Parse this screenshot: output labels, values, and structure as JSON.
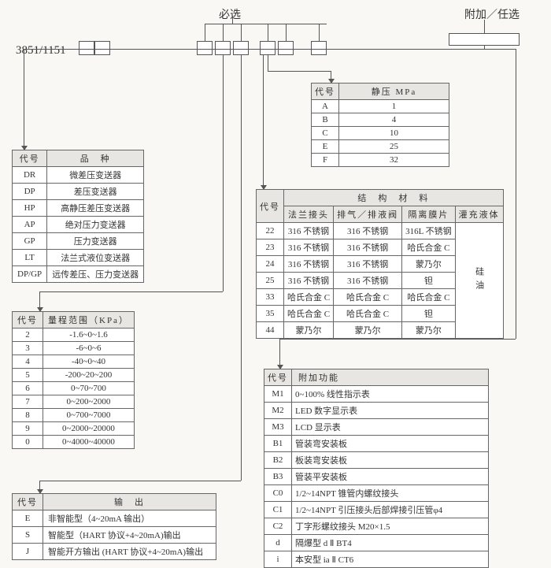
{
  "labels": {
    "required": "必选",
    "optional": "附加／任选",
    "model": "3851/1151"
  },
  "table_variety": {
    "headers": [
      "代号",
      "品　种"
    ],
    "rows": [
      [
        "DR",
        "微差压变送器"
      ],
      [
        "DP",
        "差压变送器"
      ],
      [
        "HP",
        "高静压差压变送器"
      ],
      [
        "AP",
        "绝对压力变送器"
      ],
      [
        "GP",
        "压力变送器"
      ],
      [
        "LT",
        "法兰式液位变送器"
      ],
      [
        "DP/GP",
        "远传差压、压力变送器"
      ]
    ]
  },
  "table_range": {
    "headers": [
      "代号",
      "量程范围（KPa）"
    ],
    "rows": [
      [
        "2",
        "-1.6~0~1.6"
      ],
      [
        "3",
        "-6~0~6"
      ],
      [
        "4",
        "-40~0~40"
      ],
      [
        "5",
        "-200~20~200"
      ],
      [
        "6",
        "0~70~700"
      ],
      [
        "7",
        "0~200~2000"
      ],
      [
        "8",
        "0~700~7000"
      ],
      [
        "9",
        "0~2000~20000"
      ],
      [
        "0",
        "0~4000~40000"
      ]
    ]
  },
  "table_output": {
    "headers": [
      "代号",
      "输　出"
    ],
    "rows": [
      [
        "E",
        "非智能型（4~20mA 输出）"
      ],
      [
        "S",
        "智能型（HART 协议+4~20mA)输出"
      ],
      [
        "J",
        "智能开方输出 (HART 协议+4~20mA)输出"
      ]
    ]
  },
  "table_static": {
    "headers": [
      "代号",
      "静压 MPa"
    ],
    "rows": [
      [
        "A",
        "1"
      ],
      [
        "B",
        "4"
      ],
      [
        "C",
        "10"
      ],
      [
        "E",
        "25"
      ],
      [
        "F",
        "32"
      ]
    ]
  },
  "table_material": {
    "title": "结　构　材　料",
    "headers": [
      "代号",
      "法兰接头",
      "排气／排液阀",
      "隔离膜片",
      "灌充液体"
    ],
    "fill": "硅油",
    "rows": [
      [
        "22",
        "316 不锈钢",
        "316 不锈钢",
        "316L 不锈钢"
      ],
      [
        "23",
        "316 不锈钢",
        "316 不锈钢",
        "哈氏合金 C"
      ],
      [
        "24",
        "316 不锈钢",
        "316 不锈钢",
        "蒙乃尔"
      ],
      [
        "25",
        "316 不锈钢",
        "316 不锈钢",
        "钽"
      ],
      [
        "33",
        "哈氏合金 C",
        "哈氏合金 C",
        "哈氏合金 C"
      ],
      [
        "35",
        "哈氏合金 C",
        "哈氏合金 C",
        "钽"
      ],
      [
        "44",
        "蒙乃尔",
        "蒙乃尔",
        "蒙乃尔"
      ]
    ]
  },
  "table_addon": {
    "headers": [
      "代号",
      "附加功能"
    ],
    "rows": [
      [
        "M1",
        "0~100% 线性指示表"
      ],
      [
        "M2",
        "LED 数字显示表"
      ],
      [
        "M3",
        "LCD 显示表"
      ],
      [
        "B1",
        "管装弯安装板"
      ],
      [
        "B2",
        "板装弯安装板"
      ],
      [
        "B3",
        "管装平安装板"
      ],
      [
        "C0",
        "1/2~14NPT 锥管内螺纹接头"
      ],
      [
        "C1",
        "1/2~14NPT 引压接头后部焊接引压管φ4"
      ],
      [
        "C2",
        "丁字形螺纹接头 M20×1.5"
      ],
      [
        "d",
        "隔爆型 d Ⅱ BT4"
      ],
      [
        "i",
        "本安型 ia Ⅱ CT6"
      ]
    ]
  },
  "colors": {
    "bg": "#faf8f5",
    "border": "#666",
    "header_bg": "#e8e6e2",
    "line": "#555"
  }
}
